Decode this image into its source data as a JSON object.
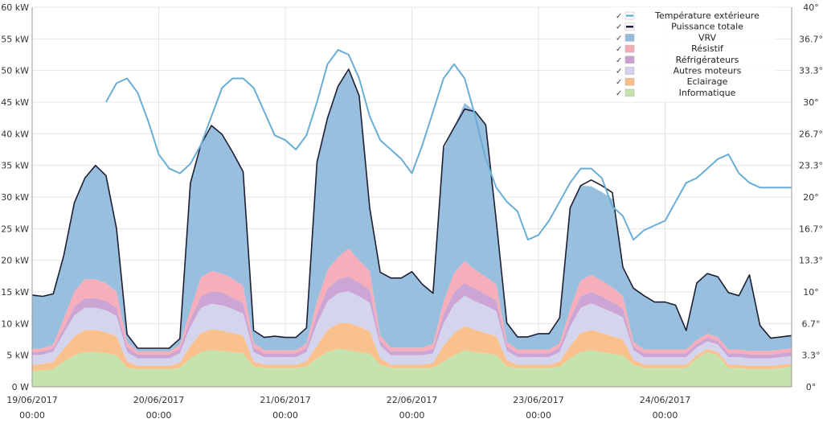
{
  "chart_data": {
    "type": "area",
    "title": "",
    "xlabel": "",
    "ylabel": "",
    "ylim": [
      0,
      60
    ],
    "y2lim": [
      0,
      40
    ],
    "y_ticks": [
      {
        "v": 0,
        "label": "0 W"
      },
      {
        "v": 5,
        "label": "5 kW"
      },
      {
        "v": 10,
        "label": "10 kW"
      },
      {
        "v": 15,
        "label": "15 kW"
      },
      {
        "v": 20,
        "label": "20 kW"
      },
      {
        "v": 25,
        "label": "25 kW"
      },
      {
        "v": 30,
        "label": "30 kW"
      },
      {
        "v": 35,
        "label": "35 kW"
      },
      {
        "v": 40,
        "label": "40 kW"
      },
      {
        "v": 45,
        "label": "45 kW"
      },
      {
        "v": 50,
        "label": "50 kW"
      },
      {
        "v": 55,
        "label": "55 kW"
      },
      {
        "v": 60,
        "label": "60 kW"
      }
    ],
    "y2_ticks": [
      {
        "v": 0,
        "label": "0°"
      },
      {
        "v": 3.33,
        "label": "3.3°"
      },
      {
        "v": 6.67,
        "label": "6.7°"
      },
      {
        "v": 10,
        "label": "10°"
      },
      {
        "v": 13.33,
        "label": "13.3°"
      },
      {
        "v": 16.67,
        "label": "16.7°"
      },
      {
        "v": 20,
        "label": "20°"
      },
      {
        "v": 23.33,
        "label": "23.3°"
      },
      {
        "v": 26.67,
        "label": "26.7°"
      },
      {
        "v": 30,
        "label": "30°"
      },
      {
        "v": 33.33,
        "label": "33.3°"
      },
      {
        "v": 36.67,
        "label": "36.7°"
      },
      {
        "v": 40,
        "label": "40°"
      }
    ],
    "x_range_hours": [
      0,
      144
    ],
    "x_ticks": [
      {
        "h": 0,
        "date": "19/06/2017",
        "time": "00:00"
      },
      {
        "h": 24,
        "date": "20/06/2017",
        "time": "00:00"
      },
      {
        "h": 48,
        "date": "21/06/2017",
        "time": "00:00"
      },
      {
        "h": 72,
        "date": "22/06/2017",
        "time": "00:00"
      },
      {
        "h": 96,
        "date": "23/06/2017",
        "time": "00:00"
      },
      {
        "h": 120,
        "date": "24/06/2017",
        "time": "00:00"
      }
    ],
    "legend_position": "top-right",
    "legend": [
      {
        "name": "Température extérieure",
        "color": "#6aaed6",
        "kind": "line"
      },
      {
        "name": "Puissance totale",
        "color": "#1e1e32",
        "kind": "line"
      },
      {
        "name": "VRV",
        "color": "#93bcdc",
        "kind": "area"
      },
      {
        "name": "Résistif",
        "color": "#f6aab6",
        "kind": "area"
      },
      {
        "name": "Réfrigérateurs",
        "color": "#c9a0d2",
        "kind": "area"
      },
      {
        "name": "Autres moteurs",
        "color": "#d3d2ec",
        "kind": "area"
      },
      {
        "name": "Eclairage",
        "color": "#f9be88",
        "kind": "area"
      },
      {
        "name": "Informatique",
        "color": "#c2e2a8",
        "kind": "area"
      }
    ],
    "hours": [
      0,
      2,
      4,
      6,
      8,
      10,
      12,
      14,
      16,
      18,
      20,
      22,
      24,
      26,
      28,
      30,
      32,
      34,
      36,
      38,
      40,
      42,
      44,
      46,
      48,
      50,
      52,
      54,
      56,
      58,
      60,
      62,
      64,
      66,
      68,
      70,
      72,
      74,
      76,
      78,
      80,
      82,
      84,
      86,
      88,
      90,
      92,
      94,
      96,
      98,
      100,
      102,
      104,
      106,
      108,
      110,
      112,
      114,
      116,
      118,
      120,
      122,
      124,
      126,
      128,
      130,
      132,
      134,
      136,
      138,
      140,
      142,
      144
    ],
    "stack_order": [
      "Informatique",
      "Eclairage",
      "Autres moteurs",
      "Réfrigérateurs",
      "Résistif",
      "VRV"
    ],
    "series": [
      {
        "name": "Informatique",
        "unit": "kW",
        "values": [
          2.5,
          2.6,
          2.8,
          4.0,
          5.0,
          5.5,
          5.5,
          5.3,
          5.0,
          3.0,
          2.8,
          2.8,
          2.8,
          2.8,
          3.0,
          4.5,
          5.5,
          5.8,
          5.7,
          5.5,
          5.3,
          3.2,
          3.0,
          3.0,
          3.0,
          3.0,
          3.2,
          4.5,
          5.5,
          6.0,
          5.8,
          5.5,
          5.3,
          3.5,
          3.0,
          3.0,
          3.0,
          3.0,
          3.0,
          4.0,
          5.0,
          5.8,
          5.5,
          5.3,
          5.0,
          3.2,
          3.0,
          3.0,
          3.0,
          3.0,
          3.2,
          4.5,
          5.5,
          5.8,
          5.5,
          5.2,
          5.0,
          3.5,
          3.0,
          3.0,
          3.0,
          3.0,
          3.0,
          4.5,
          5.5,
          5.0,
          3.0,
          3.0,
          2.8,
          2.8,
          2.8,
          3.0,
          3.2
        ]
      },
      {
        "name": "Eclairage",
        "unit": "kW",
        "values": [
          1.0,
          1.0,
          1.2,
          2.0,
          3.0,
          3.5,
          3.5,
          3.3,
          3.0,
          1.0,
          0.5,
          0.5,
          0.5,
          0.5,
          0.8,
          2.0,
          3.0,
          3.3,
          3.2,
          3.0,
          2.8,
          0.8,
          0.5,
          0.5,
          0.5,
          0.5,
          0.8,
          2.0,
          3.5,
          4.0,
          4.3,
          4.0,
          3.5,
          1.0,
          0.5,
          0.5,
          0.5,
          0.5,
          0.8,
          2.5,
          3.5,
          3.8,
          3.5,
          3.2,
          3.0,
          1.0,
          0.5,
          0.5,
          0.5,
          0.5,
          0.8,
          2.0,
          3.0,
          3.2,
          3.0,
          2.8,
          2.5,
          0.8,
          0.5,
          0.5,
          0.5,
          0.5,
          0.5,
          0.5,
          0.5,
          0.5,
          0.5,
          0.5,
          0.5,
          0.5,
          0.5,
          0.5,
          0.5
        ]
      },
      {
        "name": "Autres moteurs",
        "unit": "kW",
        "values": [
          1.5,
          1.5,
          1.6,
          2.5,
          3.3,
          3.5,
          3.5,
          3.5,
          3.2,
          1.5,
          1.2,
          1.2,
          1.2,
          1.2,
          1.5,
          3.0,
          4.0,
          4.0,
          4.0,
          3.8,
          3.5,
          1.5,
          1.2,
          1.2,
          1.2,
          1.2,
          1.5,
          3.5,
          4.5,
          4.8,
          5.0,
          4.8,
          4.5,
          2.0,
          1.5,
          1.5,
          1.5,
          1.5,
          1.5,
          3.5,
          4.5,
          4.8,
          4.5,
          4.3,
          4.0,
          1.5,
          1.2,
          1.2,
          1.2,
          1.2,
          1.5,
          3.0,
          4.0,
          4.2,
          4.0,
          3.8,
          3.5,
          1.5,
          1.2,
          1.2,
          1.2,
          1.2,
          1.2,
          1.2,
          1.2,
          1.2,
          1.2,
          1.2,
          1.2,
          1.2,
          1.2,
          1.2,
          1.2
        ]
      },
      {
        "name": "Réfrigérateurs",
        "unit": "kW",
        "values": [
          0.5,
          0.5,
          0.5,
          0.8,
          1.3,
          1.5,
          1.5,
          1.5,
          1.3,
          0.8,
          0.6,
          0.6,
          0.6,
          0.6,
          0.7,
          1.2,
          1.8,
          2.0,
          2.0,
          1.8,
          1.6,
          0.7,
          0.6,
          0.6,
          0.6,
          0.6,
          0.7,
          1.5,
          2.0,
          2.2,
          2.3,
          2.2,
          2.0,
          0.8,
          0.6,
          0.6,
          0.6,
          0.6,
          0.7,
          1.5,
          2.0,
          2.0,
          2.0,
          1.8,
          1.6,
          0.7,
          0.6,
          0.6,
          0.6,
          0.6,
          0.7,
          1.3,
          1.8,
          1.8,
          1.8,
          1.6,
          1.4,
          0.6,
          0.6,
          0.6,
          0.6,
          0.6,
          0.6,
          0.6,
          0.6,
          0.6,
          0.6,
          0.6,
          0.6,
          0.6,
          0.6,
          0.6,
          0.6
        ]
      },
      {
        "name": "Résistif",
        "unit": "kW",
        "values": [
          0.5,
          0.5,
          0.6,
          1.5,
          2.5,
          3.0,
          3.0,
          2.8,
          2.5,
          0.8,
          0.5,
          0.5,
          0.5,
          0.5,
          0.6,
          1.5,
          3.0,
          3.2,
          3.0,
          3.0,
          2.8,
          0.7,
          0.5,
          0.5,
          0.5,
          0.5,
          0.6,
          2.0,
          3.0,
          3.5,
          4.5,
          3.5,
          3.0,
          0.8,
          0.6,
          0.6,
          0.6,
          0.6,
          0.8,
          2.0,
          3.0,
          3.5,
          3.0,
          2.8,
          2.6,
          0.7,
          0.6,
          0.6,
          0.6,
          0.6,
          0.7,
          1.5,
          2.5,
          2.7,
          2.5,
          2.3,
          2.0,
          0.7,
          0.6,
          0.6,
          0.6,
          0.6,
          0.6,
          0.6,
          0.6,
          0.6,
          0.6,
          0.6,
          0.6,
          0.6,
          0.6,
          0.6,
          0.6
        ]
      },
      {
        "name": "VRV",
        "unit": "kW",
        "values": [
          8.5,
          8.2,
          8.0,
          10.0,
          14.0,
          16.0,
          18.0,
          17.0,
          10.0,
          1.2,
          0.5,
          0.5,
          0.5,
          0.5,
          1.0,
          20.0,
          21.0,
          23.0,
          22.0,
          20.0,
          18.0,
          2.0,
          2.0,
          2.2,
          2.0,
          2.0,
          2.5,
          22.0,
          24.0,
          27.0,
          28.0,
          26.0,
          10.0,
          10.0,
          11.0,
          11.0,
          12.0,
          10.0,
          8.0,
          24.0,
          23.0,
          25.0,
          25.0,
          24.0,
          10.0,
          3.0,
          2.0,
          2.0,
          2.5,
          2.5,
          4.0,
          16.0,
          15.0,
          14.0,
          14.0,
          14.0,
          4.5,
          8.5,
          8.5,
          7.5,
          7.5,
          7.0,
          3.0,
          9.0,
          9.5,
          9.5,
          9.0,
          8.5,
          12.0,
          4.0,
          2.0,
          2.0,
          2.0
        ]
      },
      {
        "name": "Puissance totale",
        "unit": "kW",
        "values": [
          14.5,
          14.3,
          14.7,
          20.8,
          29.1,
          33.0,
          35.0,
          33.4,
          25.0,
          8.3,
          6.1,
          6.1,
          6.1,
          6.1,
          7.6,
          32.2,
          38.3,
          41.3,
          39.9,
          37.1,
          34.0,
          8.9,
          7.8,
          8.0,
          7.8,
          7.8,
          9.3,
          35.5,
          42.5,
          47.5,
          50.2,
          46.0,
          28.3,
          18.1,
          17.2,
          17.2,
          18.2,
          16.2,
          14.8,
          38.0,
          41.0,
          43.9,
          43.5,
          41.4,
          26.2,
          10.1,
          7.9,
          7.9,
          8.4,
          8.4,
          10.9,
          28.3,
          31.8,
          32.7,
          31.8,
          30.7,
          18.9,
          15.6,
          14.4,
          13.4,
          13.4,
          12.9,
          8.9,
          16.4,
          17.9,
          17.4,
          14.9,
          14.4,
          17.7,
          9.7,
          7.7,
          7.9,
          8.1
        ]
      },
      {
        "name": "Température extérieure",
        "unit": "°C",
        "axis": "right",
        "values": [
          null,
          null,
          null,
          null,
          null,
          null,
          null,
          null,
          null,
          null,
          null,
          null,
          null,
          null,
          null,
          null,
          null,
          null,
          null,
          null,
          null,
          null,
          null,
          null,
          null,
          null,
          null,
          null,
          null,
          null,
          null,
          null,
          null,
          null,
          null,
          null,
          null,
          null,
          null,
          null,
          null,
          null,
          null,
          null,
          null,
          null,
          null,
          null,
          null,
          null,
          null,
          null,
          null,
          null,
          null,
          null,
          null,
          null,
          null,
          null,
          null,
          null,
          null,
          null,
          null,
          null,
          null,
          null,
          null,
          null,
          null,
          null,
          null
        ]
      },
      {
        "name": "Température extérieure (courbe)",
        "unit": "°C",
        "axis": "right",
        "x_hours": [
          14,
          16,
          18,
          20,
          22,
          24,
          26,
          28,
          30,
          32,
          34,
          36,
          38,
          40,
          42,
          44,
          46,
          48,
          50,
          52,
          54,
          56,
          58,
          60,
          62,
          64,
          66,
          68,
          70,
          72,
          74,
          76,
          78,
          80,
          82,
          84,
          86,
          88,
          90,
          92,
          94,
          96,
          98,
          100,
          102,
          104,
          106,
          108,
          110,
          112,
          114,
          116,
          118,
          120,
          122,
          124,
          126,
          128,
          130,
          132,
          134,
          136,
          138,
          140,
          142,
          144
        ],
        "values": [
          30.0,
          32.0,
          32.5,
          31.0,
          28.0,
          24.5,
          23.0,
          22.5,
          23.5,
          25.5,
          28.5,
          31.5,
          32.5,
          32.5,
          31.5,
          29.0,
          26.5,
          26.0,
          25.0,
          26.5,
          30.0,
          34.0,
          35.5,
          35.0,
          32.5,
          28.5,
          26.0,
          25.0,
          24.0,
          22.5,
          25.5,
          29.0,
          32.5,
          34.0,
          32.5,
          28.5,
          24.0,
          21.0,
          19.5,
          18.5,
          15.5,
          16.0,
          17.5,
          19.5,
          21.5,
          23.0,
          23.0,
          22.0,
          19.0,
          18.0,
          15.5,
          16.5,
          17.0,
          17.5,
          19.5,
          21.5,
          22.0,
          23.0,
          24.0,
          24.5,
          22.5,
          21.5,
          21.0,
          21.0,
          21.0,
          21.0
        ]
      }
    ]
  }
}
